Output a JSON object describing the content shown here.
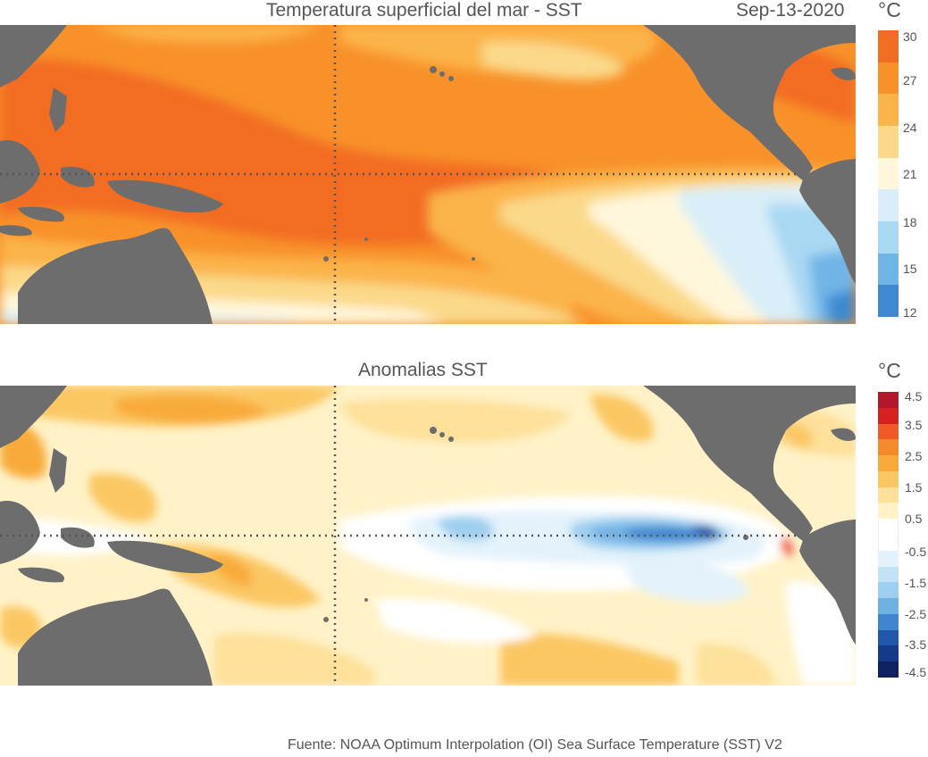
{
  "panels": {
    "sst": {
      "title": "Temperatura superficial del mar - SST",
      "date": "Sep-13-2020",
      "unit": "°C",
      "colorbar": {
        "ticks": [
          "30",
          "27",
          "24",
          "21",
          "18",
          "15",
          "12"
        ],
        "colors": [
          "#f26d21",
          "#f8912a",
          "#fbb448",
          "#fbd98a",
          "#fff7dc",
          "#d9eef8",
          "#a9d8f3",
          "#6fb5e6",
          "#3e89cf"
        ]
      }
    },
    "anom": {
      "title": "Anomalias SST",
      "unit": "°C",
      "colorbar": {
        "ticks": [
          "4.5",
          "3.5",
          "2.5",
          "1.5",
          "0.5",
          "-0.5",
          "-1.5",
          "-2.5",
          "-3.5",
          "-4.5"
        ],
        "colors": [
          "#b2182b",
          "#d6221f",
          "#ef5a26",
          "#f48a2d",
          "#f8ab3a",
          "#fbc764",
          "#fde09a",
          "#fff2c8",
          "#ffffff",
          "#ffffff",
          "#e3f2fb",
          "#c2e2f6",
          "#9dcff0",
          "#6fb1e3",
          "#3f86cf",
          "#2158ac",
          "#153a8a",
          "#0f2160"
        ]
      }
    }
  },
  "colors": {
    "land": "#6d6d6d",
    "grid": "#555555"
  },
  "source": "Fuente: NOAA Optimum Interpolation (OI) Sea Surface Temperature (SST) V2"
}
